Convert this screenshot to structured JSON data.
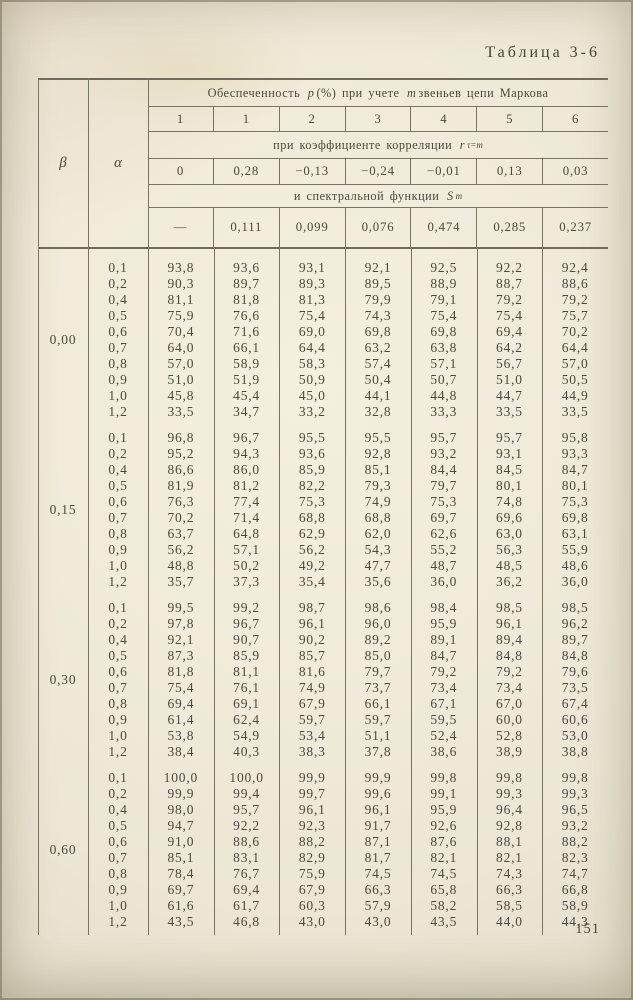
{
  "page": {
    "title": "Таблица 3-6",
    "page_number": "151"
  },
  "table": {
    "col_beta": "β",
    "col_alpha": "α",
    "header_main": {
      "t1": "Обеспеченность",
      "p": "p",
      "t2": "(%) при учете",
      "m": "m",
      "t3": "звеньев цепи Маркова"
    },
    "col_numbers": [
      "1",
      "1",
      "2",
      "3",
      "4",
      "5",
      "6"
    ],
    "header_corr": {
      "text": "при коэффициенте корреляции",
      "var": "r",
      "sub": "τ=m"
    },
    "corr_values": [
      "0",
      "0,28",
      "−0,13",
      "−0,24",
      "−0,01",
      "0,13",
      "0,03"
    ],
    "header_spectral": {
      "text": "и спектральной функции",
      "var": "S",
      "sub": "m"
    },
    "spectral_values": [
      "—",
      "0,111",
      "0,099",
      "0,076",
      "0,474",
      "0,285",
      "0,237"
    ],
    "blocks": [
      {
        "beta": "0,00",
        "rows": [
          {
            "alpha": "0,1",
            "values": [
              "93,8",
              "93,6",
              "93,1",
              "92,1",
              "92,5",
              "92,2",
              "92,4"
            ]
          },
          {
            "alpha": "0,2",
            "values": [
              "90,3",
              "89,7",
              "89,3",
              "89,5",
              "88,9",
              "88,7",
              "88,6"
            ]
          },
          {
            "alpha": "0,4",
            "values": [
              "81,1",
              "81,8",
              "81,3",
              "79,9",
              "79,1",
              "79,2",
              "79,2"
            ]
          },
          {
            "alpha": "0,5",
            "values": [
              "75,9",
              "76,6",
              "75,4",
              "74,3",
              "75,4",
              "75,4",
              "75,7"
            ]
          },
          {
            "alpha": "0,6",
            "values": [
              "70,4",
              "71,6",
              "69,0",
              "69,8",
              "69,8",
              "69,4",
              "70,2"
            ]
          },
          {
            "alpha": "0,7",
            "values": [
              "64,0",
              "66,1",
              "64,4",
              "63,2",
              "63,8",
              "64,2",
              "64,4"
            ]
          },
          {
            "alpha": "0,8",
            "values": [
              "57,0",
              "58,9",
              "58,3",
              "57,4",
              "57,1",
              "56,7",
              "57,0"
            ]
          },
          {
            "alpha": "0,9",
            "values": [
              "51,0",
              "51,9",
              "50,9",
              "50,4",
              "50,7",
              "51,0",
              "50,5"
            ]
          },
          {
            "alpha": "1,0",
            "values": [
              "45,8",
              "45,4",
              "45,0",
              "44,1",
              "44,8",
              "44,7",
              "44,9"
            ]
          },
          {
            "alpha": "1,2",
            "values": [
              "33,5",
              "34,7",
              "33,2",
              "32,8",
              "33,3",
              "33,5",
              "33,5"
            ]
          }
        ]
      },
      {
        "beta": "0,15",
        "rows": [
          {
            "alpha": "0,1",
            "values": [
              "96,8",
              "96,7",
              "95,5",
              "95,5",
              "95,7",
              "95,7",
              "95,8"
            ]
          },
          {
            "alpha": "0,2",
            "values": [
              "95,2",
              "94,3",
              "93,6",
              "92,8",
              "93,2",
              "93,1",
              "93,3"
            ]
          },
          {
            "alpha": "0,4",
            "values": [
              "86,6",
              "86,0",
              "85,9",
              "85,1",
              "84,4",
              "84,5",
              "84,7"
            ]
          },
          {
            "alpha": "0,5",
            "values": [
              "81,9",
              "81,2",
              "82,2",
              "79,3",
              "79,7",
              "80,1",
              "80,1"
            ]
          },
          {
            "alpha": "0,6",
            "values": [
              "76,3",
              "77,4",
              "75,3",
              "74,9",
              "75,3",
              "74,8",
              "75,3"
            ]
          },
          {
            "alpha": "0,7",
            "values": [
              "70,2",
              "71,4",
              "68,8",
              "68,8",
              "69,7",
              "69,6",
              "69,8"
            ]
          },
          {
            "alpha": "0,8",
            "values": [
              "63,7",
              "64,8",
              "62,9",
              "62,0",
              "62,6",
              "63,0",
              "63,1"
            ]
          },
          {
            "alpha": "0,9",
            "values": [
              "56,2",
              "57,1",
              "56,2",
              "54,3",
              "55,2",
              "56,3",
              "55,9"
            ]
          },
          {
            "alpha": "1,0",
            "values": [
              "48,8",
              "50,2",
              "49,2",
              "47,7",
              "48,7",
              "48,5",
              "48,6"
            ]
          },
          {
            "alpha": "1,2",
            "values": [
              "35,7",
              "37,3",
              "35,4",
              "35,6",
              "36,0",
              "36,2",
              "36,0"
            ]
          }
        ]
      },
      {
        "beta": "0,30",
        "rows": [
          {
            "alpha": "0,1",
            "values": [
              "99,5",
              "99,2",
              "98,7",
              "98,6",
              "98,4",
              "98,5",
              "98,5"
            ]
          },
          {
            "alpha": "0,2",
            "values": [
              "97,8",
              "96,7",
              "96,1",
              "96,0",
              "95,9",
              "96,1",
              "96,2"
            ]
          },
          {
            "alpha": "0,4",
            "values": [
              "92,1",
              "90,7",
              "90,2",
              "89,2",
              "89,1",
              "89,4",
              "89,7"
            ]
          },
          {
            "alpha": "0,5",
            "values": [
              "87,3",
              "85,9",
              "85,7",
              "85,0",
              "84,7",
              "84,8",
              "84,8"
            ]
          },
          {
            "alpha": "0,6",
            "values": [
              "81,8",
              "81,1",
              "81,6",
              "79,7",
              "79,2",
              "79,2",
              "79,6"
            ]
          },
          {
            "alpha": "0,7",
            "values": [
              "75,4",
              "76,1",
              "74,9",
              "73,7",
              "73,4",
              "73,4",
              "73,5"
            ]
          },
          {
            "alpha": "0,8",
            "values": [
              "69,4",
              "69,1",
              "67,9",
              "66,1",
              "67,1",
              "67,0",
              "67,4"
            ]
          },
          {
            "alpha": "0,9",
            "values": [
              "61,4",
              "62,4",
              "59,7",
              "59,7",
              "59,5",
              "60,0",
              "60,6"
            ]
          },
          {
            "alpha": "1,0",
            "values": [
              "53,8",
              "54,9",
              "53,4",
              "51,1",
              "52,4",
              "52,8",
              "53,0"
            ]
          },
          {
            "alpha": "1,2",
            "values": [
              "38,4",
              "40,3",
              "38,3",
              "37,8",
              "38,6",
              "38,9",
              "38,8"
            ]
          }
        ]
      },
      {
        "beta": "0,60",
        "rows": [
          {
            "alpha": "0,1",
            "values": [
              "100,0",
              "100,0",
              "99,9",
              "99,9",
              "99,8",
              "99,8",
              "99,8"
            ]
          },
          {
            "alpha": "0,2",
            "values": [
              "99,9",
              "99,4",
              "99,7",
              "99,6",
              "99,1",
              "99,3",
              "99,3"
            ]
          },
          {
            "alpha": "0,4",
            "values": [
              "98,0",
              "95,7",
              "96,1",
              "96,1",
              "95,9",
              "96,4",
              "96,5"
            ]
          },
          {
            "alpha": "0,5",
            "values": [
              "94,7",
              "92,2",
              "92,3",
              "91,7",
              "92,6",
              "92,8",
              "93,2"
            ]
          },
          {
            "alpha": "0,6",
            "values": [
              "91,0",
              "88,6",
              "88,2",
              "87,1",
              "87,6",
              "88,1",
              "88,2"
            ]
          },
          {
            "alpha": "0,7",
            "values": [
              "85,1",
              "83,1",
              "82,9",
              "81,7",
              "82,1",
              "82,1",
              "82,3"
            ]
          },
          {
            "alpha": "0,8",
            "values": [
              "78,4",
              "76,7",
              "75,9",
              "74,5",
              "74,5",
              "74,3",
              "74,7"
            ]
          },
          {
            "alpha": "0,9",
            "values": [
              "69,7",
              "69,4",
              "67,9",
              "66,3",
              "65,8",
              "66,3",
              "66,8"
            ]
          },
          {
            "alpha": "1,0",
            "values": [
              "61,6",
              "61,7",
              "60,3",
              "57,9",
              "58,2",
              "58,5",
              "58,9"
            ]
          },
          {
            "alpha": "1,2",
            "values": [
              "43,5",
              "46,8",
              "43,0",
              "43,0",
              "43,5",
              "44,0",
              "44,3"
            ]
          }
        ]
      }
    ]
  }
}
